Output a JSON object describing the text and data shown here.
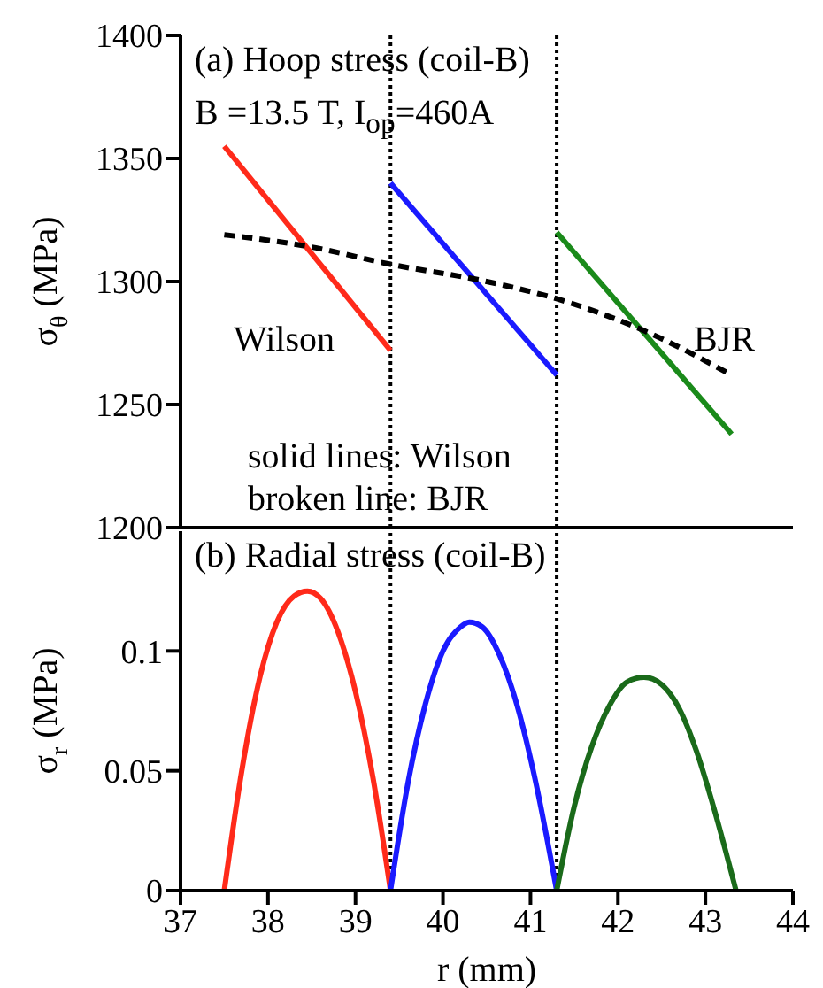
{
  "chart_data": [
    {
      "type": "line",
      "ylabel": "σ$_{θ}$ (MPa)",
      "xlim": [
        37,
        44
      ],
      "xticks": [
        37,
        38,
        39,
        40,
        41,
        42,
        43,
        44
      ],
      "ylim": [
        1200,
        1400
      ],
      "yticks": [
        1200,
        1250,
        1300,
        1350,
        1400
      ],
      "tick_labels": "y",
      "marker": "none",
      "annotations": [
        "(a) Hoop stress (coil-B)",
        "B =13.5 T, I$_{op}$=460A",
        "Wilson",
        "BJR",
        "solid lines: Wilson",
        "broken line: BJR"
      ],
      "ref_lines": [
        {
          "axis": "x",
          "value": 39.4,
          "color": "#000000",
          "line_style": "dotted"
        },
        {
          "axis": "x",
          "value": 41.3,
          "color": "#000000",
          "line_style": "dotted"
        }
      ],
      "series": [
        {
          "color": "#ff2a1a",
          "line_style": "solid",
          "x": [
            37.5,
            39.4
          ],
          "values": [
            1355,
            1272
          ]
        },
        {
          "color": "#1a1aff",
          "line_style": "solid",
          "x": [
            39.4,
            41.3
          ],
          "values": [
            1340,
            1262
          ]
        },
        {
          "color": "#1a8a1a",
          "line_style": "solid",
          "x": [
            41.3,
            43.3
          ],
          "values": [
            1320,
            1238
          ]
        },
        {
          "color": "#000000",
          "line_style": "dashed",
          "x": [
            37.5,
            38.5,
            39.4,
            40.5,
            41.3,
            42.3,
            43.3
          ],
          "values": [
            1319,
            1314,
            1307,
            1300,
            1293,
            1280,
            1262
          ]
        }
      ]
    },
    {
      "type": "line",
      "ylabel": "σ$_{r}$ (MPa)",
      "xlabel": "r (mm)",
      "xlim": [
        37,
        44
      ],
      "xticks": [
        37,
        38,
        39,
        40,
        41,
        42,
        43,
        44
      ],
      "ylim": [
        0,
        0.15
      ],
      "yticks": [
        0,
        0.05,
        0.1
      ],
      "marker": "none",
      "annotations": [
        "(b) Radial stress (coil-B)"
      ],
      "ref_lines": [
        {
          "axis": "x",
          "value": 39.4,
          "color": "#000000",
          "line_style": "dotted"
        },
        {
          "axis": "x",
          "value": 41.3,
          "color": "#000000",
          "line_style": "dotted"
        }
      ],
      "series": [
        {
          "color": "#ff2a1a",
          "line_style": "solid",
          "x": [
            37.5,
            37.7,
            37.9,
            38.1,
            38.3,
            38.45,
            38.6,
            38.8,
            39.0,
            39.2,
            39.4
          ],
          "values": [
            0,
            0.05,
            0.088,
            0.112,
            0.123,
            0.125,
            0.122,
            0.108,
            0.083,
            0.047,
            0
          ]
        },
        {
          "color": "#1a1aff",
          "line_style": "solid",
          "x": [
            39.4,
            39.6,
            39.8,
            40.0,
            40.2,
            40.3,
            40.45,
            40.65,
            40.85,
            41.05,
            41.3
          ],
          "values": [
            0,
            0.045,
            0.078,
            0.1,
            0.11,
            0.112,
            0.11,
            0.098,
            0.077,
            0.047,
            0
          ]
        },
        {
          "color": "#1a6a1a",
          "line_style": "solid",
          "x": [
            41.3,
            41.5,
            41.7,
            41.9,
            42.1,
            42.3,
            42.5,
            42.7,
            42.9,
            43.1,
            43.35
          ],
          "values": [
            0,
            0.035,
            0.06,
            0.077,
            0.087,
            0.089,
            0.086,
            0.076,
            0.058,
            0.034,
            0
          ]
        }
      ]
    }
  ]
}
